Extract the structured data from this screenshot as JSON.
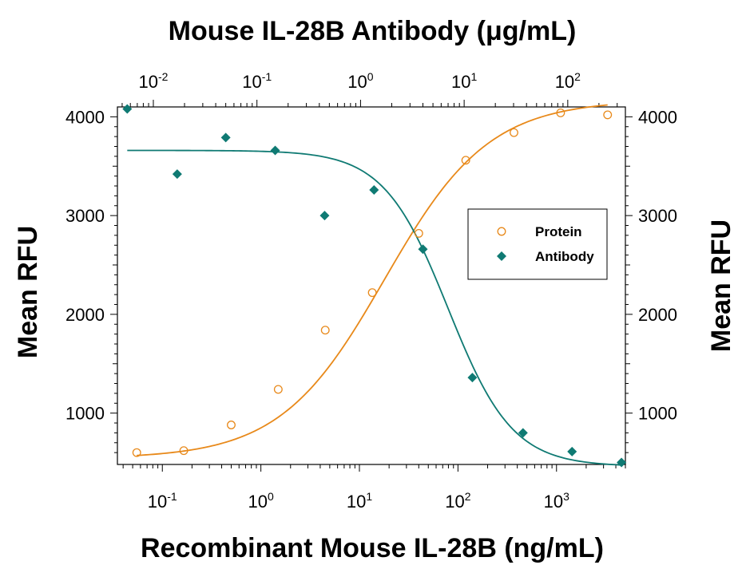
{
  "chart_data": {
    "type": "scatter",
    "title": "Mouse IL-28B Antibody (μg/mL)",
    "xlabel": "Recombinant Mouse IL-28B (ng/mL)",
    "ylabel": "Mean RFU",
    "ylabel_right": "Mean RFU",
    "xscale": "log",
    "xlim": [
      0.035,
      5000
    ],
    "ylim": [
      480,
      4100
    ],
    "x2lim": [
      0.0045,
      360
    ],
    "x_ticks": [
      {
        "base": "10",
        "exp": "-1",
        "value": 0.1
      },
      {
        "base": "10",
        "exp": "0",
        "value": 1
      },
      {
        "base": "10",
        "exp": "1",
        "value": 10
      },
      {
        "base": "10",
        "exp": "2",
        "value": 100
      },
      {
        "base": "10",
        "exp": "3",
        "value": 1000
      }
    ],
    "x2_ticks": [
      {
        "base": "10",
        "exp": "-2",
        "value": 0.01
      },
      {
        "base": "10",
        "exp": "-1",
        "value": 0.1
      },
      {
        "base": "10",
        "exp": "0",
        "value": 1
      },
      {
        "base": "10",
        "exp": "1",
        "value": 10
      },
      {
        "base": "10",
        "exp": "2",
        "value": 100
      }
    ],
    "y_ticks": [
      "1000",
      "2000",
      "3000",
      "4000"
    ],
    "y_tick_values": [
      1000,
      2000,
      3000,
      4000
    ],
    "legend_position": "right-middle",
    "grid": false,
    "series": [
      {
        "name": "Protein",
        "axis": "bottom",
        "marker": "open-circle",
        "color": "#E8891A",
        "x": [
          0.055,
          0.165,
          0.5,
          1.5,
          4.5,
          13.5,
          40,
          120,
          370,
          1100,
          3300
        ],
        "y": [
          600,
          620,
          880,
          1240,
          1840,
          2220,
          2820,
          3560,
          3840,
          4040,
          4020
        ],
        "fit": {
          "bottom": 540,
          "top": 4170,
          "ec50": 18,
          "hill": 0.82
        }
      },
      {
        "name": "Antibody",
        "axis": "top",
        "marker": "filled-diamond",
        "color": "#0F7A73",
        "x": [
          0.0056,
          0.017,
          0.05,
          0.15,
          0.45,
          1.35,
          4,
          12,
          37,
          110,
          330
        ],
        "y": [
          4080,
          3420,
          3790,
          3660,
          3000,
          3260,
          2660,
          1360,
          800,
          610,
          500
        ],
        "fit": {
          "bottom": 460,
          "top": 3660,
          "ec50": 7,
          "hill": 1.4
        }
      }
    ]
  }
}
